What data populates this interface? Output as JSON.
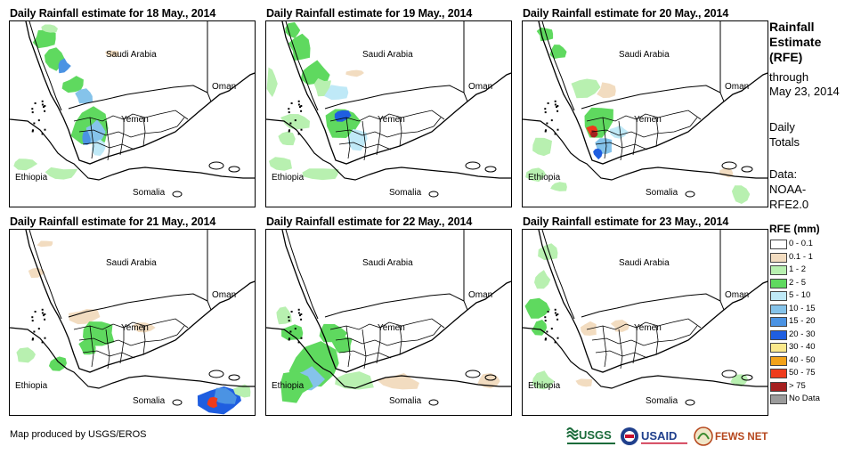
{
  "panels": [
    {
      "title": "Daily Rainfall estimate for 18 May., 2014"
    },
    {
      "title": "Daily Rainfall estimate for 19 May., 2014"
    },
    {
      "title": "Daily Rainfall estimate for 20 May., 2014"
    },
    {
      "title": "Daily Rainfall estimate for 21 May., 2014"
    },
    {
      "title": "Daily Rainfall estimate for 22 May., 2014"
    },
    {
      "title": "Daily Rainfall estimate for 23 May., 2014"
    }
  ],
  "map_labels": {
    "saudi": "Saudi Arabia",
    "oman": "Oman",
    "yemen": "Yemen",
    "ethiopia": "Ethiopia",
    "somalia": "Somalia"
  },
  "sidebar": {
    "title_lines": [
      "Rainfall",
      "Estimate",
      "(RFE)"
    ],
    "through_lines": [
      "through",
      "May 23, 2014"
    ],
    "daily_lines": [
      "Daily",
      "Totals"
    ],
    "data_lines": [
      "Data:",
      "NOAA-",
      "RFE2.0"
    ]
  },
  "legend": {
    "title": "RFE (mm)",
    "items": [
      {
        "label": "0 - 0.1",
        "color": "#ffffff"
      },
      {
        "label": "0.1 - 1",
        "color": "#f2dcc0"
      },
      {
        "label": "1 - 2",
        "color": "#b8f0b0"
      },
      {
        "label": "2 - 5",
        "color": "#5fd95f"
      },
      {
        "label": "5 - 10",
        "color": "#bfe9f7"
      },
      {
        "label": "10 - 15",
        "color": "#85c3ea"
      },
      {
        "label": "15 - 20",
        "color": "#4b93e3"
      },
      {
        "label": "20 - 30",
        "color": "#1f5ee0"
      },
      {
        "label": "30 - 40",
        "color": "#fbe98c"
      },
      {
        "label": "40 - 50",
        "color": "#f2a21a"
      },
      {
        "label": "50 - 75",
        "color": "#ee3b1c"
      },
      {
        "label": "> 75",
        "color": "#a52020"
      },
      {
        "label": "No Data",
        "color": "#9b9b9b"
      }
    ]
  },
  "footer": {
    "credit": "Map produced by USGS/EROS",
    "logos": {
      "usgs": "USGS",
      "usaid": "USAID",
      "fewsnet": "FEWS NET"
    }
  }
}
